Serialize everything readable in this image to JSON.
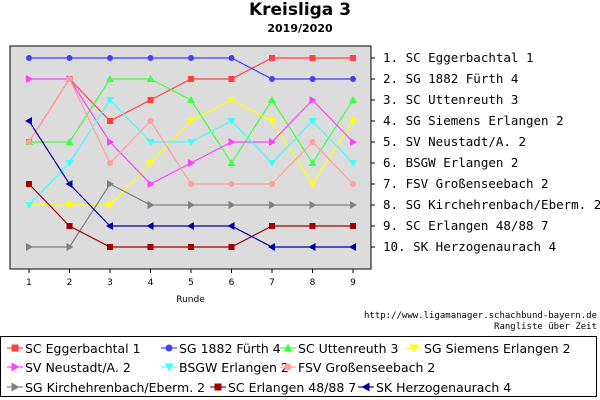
{
  "title": "Kreisliga 3",
  "subtitle": "2019/2020",
  "source_url": "http://www.ligamanager.schachbund-bayern.de",
  "note": "Rangliste über Zeit",
  "chart_data": {
    "type": "line",
    "xlabel": "Runde",
    "x": [
      1,
      2,
      3,
      4,
      5,
      6,
      7,
      8,
      9
    ],
    "ylim": [
      1,
      10
    ],
    "y_inverted": true,
    "grid": false,
    "legend_position": "bottom",
    "series": [
      {
        "name": "SC Eggerbachtal 1",
        "label": "1. SC Eggerbachtal 1",
        "color": "#ff4040",
        "marker": "square",
        "values": [
          5,
          2,
          4,
          3,
          2,
          2,
          1,
          1,
          1
        ]
      },
      {
        "name": "SG 1882 Fürth 4",
        "label": "2. SG 1882 Fürth 4",
        "color": "#4040ff",
        "marker": "circle",
        "values": [
          1,
          1,
          1,
          1,
          1,
          1,
          2,
          2,
          2
        ]
      },
      {
        "name": "SC Uttenreuth 3",
        "label": "3. SC Uttenreuth 3",
        "color": "#40ff40",
        "marker": "triangle-up",
        "values": [
          5,
          5,
          2,
          2,
          3,
          6,
          3,
          6,
          3
        ]
      },
      {
        "name": "SG Siemens Erlangen 2",
        "label": "4. SG Siemens Erlangen 2",
        "color": "#ffff00",
        "marker": "triangle-down",
        "values": [
          8,
          8,
          8,
          6,
          4,
          3,
          4,
          7,
          4
        ]
      },
      {
        "name": "SV Neustadt/A. 2",
        "label": "5. SV Neustadt/A. 2",
        "color": "#ff40ff",
        "marker": "triangle-right",
        "values": [
          2,
          2,
          5,
          7,
          6,
          5,
          5,
          3,
          5
        ]
      },
      {
        "name": "BSGW Erlangen 2",
        "label": "6. BSGW Erlangen 2",
        "color": "#40ffff",
        "marker": "triangle-down",
        "values": [
          8,
          6,
          3,
          5,
          5,
          4,
          6,
          4,
          6
        ]
      },
      {
        "name": "FSV Großenseebach 2",
        "label": "7. FSV Großenseebach 2",
        "color": "#ffa0a0",
        "marker": "circle",
        "values": [
          5,
          2,
          6,
          4,
          7,
          7,
          7,
          5,
          7
        ]
      },
      {
        "name": "SG Kirchehrenbach/Eberm. 2",
        "label": "8. SG Kirchehrenbach/Eberm. 2",
        "color": "#808080",
        "marker": "triangle-right",
        "values": [
          10,
          10,
          7,
          8,
          8,
          8,
          8,
          8,
          8
        ]
      },
      {
        "name": "SC Erlangen 48/88 7",
        "label": "9. SC Erlangen 48/88 7",
        "color": "#a00000",
        "marker": "square",
        "values": [
          7,
          9,
          10,
          10,
          10,
          10,
          9,
          9,
          9
        ]
      },
      {
        "name": "SK Herzogenaurach 4",
        "label": "10. SK Herzogenaurach 4",
        "color": "#0000a0",
        "marker": "triangle-left",
        "values": [
          4,
          7,
          9,
          9,
          9,
          9,
          10,
          10,
          10
        ]
      }
    ]
  }
}
